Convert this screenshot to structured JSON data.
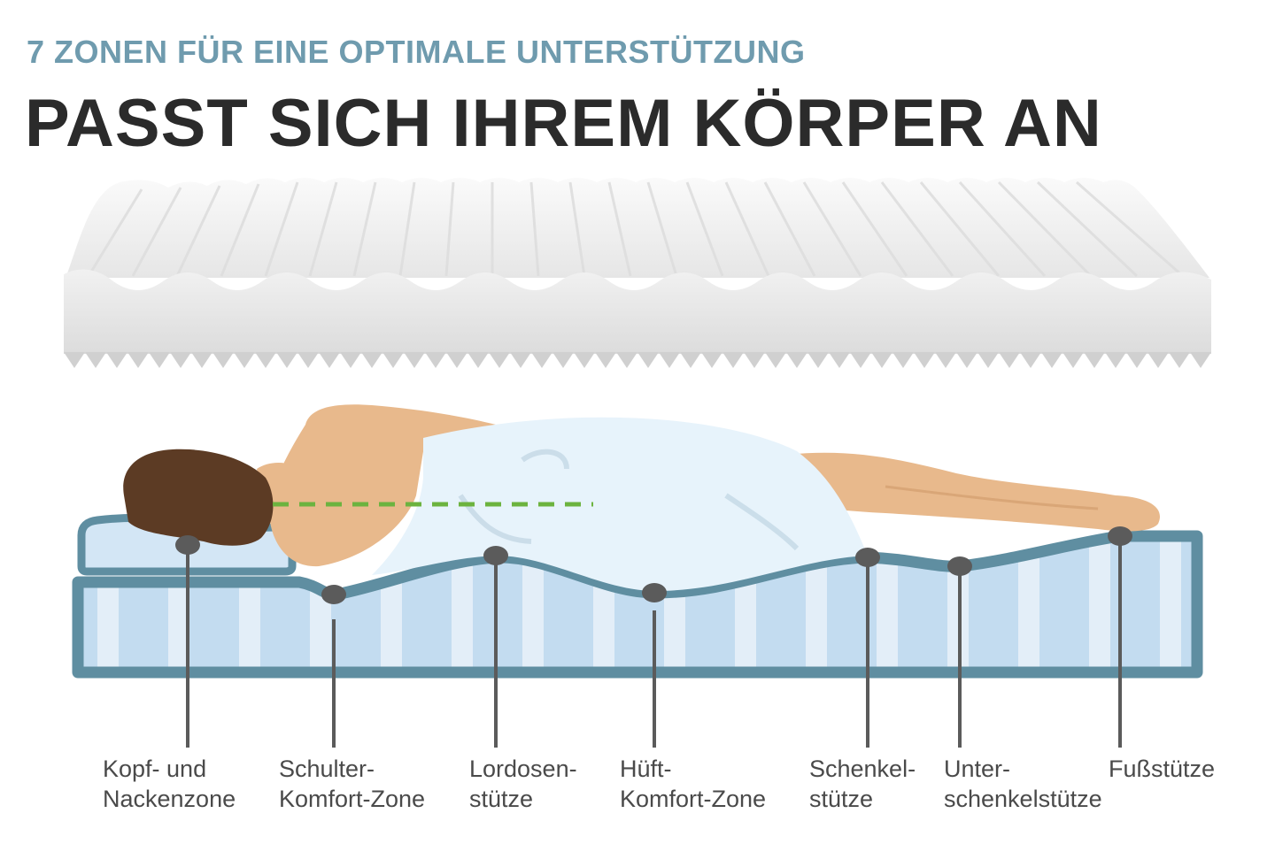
{
  "header": {
    "subtitle": "7 ZONEN FÜR EINE OPTIMALE UNTERSTÜTZUNG",
    "title": "PASST SICH IHREM KÖRPER AN"
  },
  "zones": [
    {
      "line1": "Kopf- und",
      "line2": "Nackenzone"
    },
    {
      "line1": "Schulter-",
      "line2": "Komfort-Zone"
    },
    {
      "line1": "Lordosen-",
      "line2": "stütze"
    },
    {
      "line1": "Hüft-",
      "line2": "Komfort-Zone"
    },
    {
      "line1": "Schenkel-",
      "line2": "stütze"
    },
    {
      "line1": "Unter-",
      "line2": "schenkelstütze"
    },
    {
      "line1": "Fußstütze",
      "line2": ""
    }
  ],
  "colors": {
    "subtitle": "#6f9bae",
    "title": "#2b2b2b",
    "mattress_outline": "#5f8ea1",
    "mattress_fill": "#c3dcf0",
    "stripe": "#e3eef8",
    "skin": "#e8b98c",
    "hair": "#5c3b24",
    "sheet": "#e7f3fb",
    "spine_line": "#6cb33f",
    "marker": "#5b5b5b"
  }
}
